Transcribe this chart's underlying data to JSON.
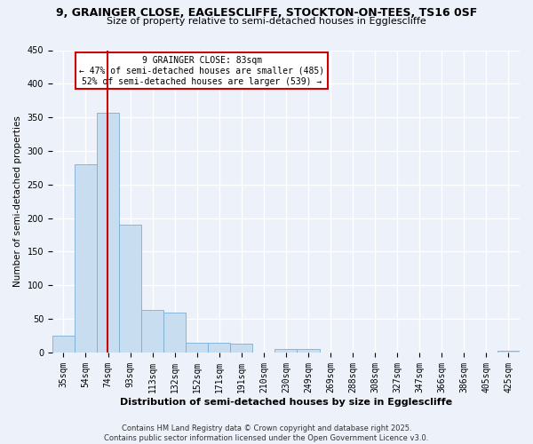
{
  "title1": "9, GRAINGER CLOSE, EAGLESCLIFFE, STOCKTON-ON-TEES, TS16 0SF",
  "title2": "Size of property relative to semi-detached houses in Egglescliffe",
  "xlabel": "Distribution of semi-detached houses by size in Egglescliffe",
  "ylabel": "Number of semi-detached properties",
  "bar_labels": [
    "35sqm",
    "54sqm",
    "74sqm",
    "93sqm",
    "113sqm",
    "132sqm",
    "152sqm",
    "171sqm",
    "191sqm",
    "210sqm",
    "230sqm",
    "249sqm",
    "269sqm",
    "288sqm",
    "308sqm",
    "327sqm",
    "347sqm",
    "366sqm",
    "386sqm",
    "405sqm",
    "425sqm"
  ],
  "bar_values": [
    25,
    280,
    357,
    190,
    63,
    60,
    15,
    15,
    13,
    0,
    5,
    5,
    0,
    0,
    0,
    0,
    0,
    0,
    0,
    0,
    2
  ],
  "bar_color": "#c8ddf0",
  "bar_edge_color": "#7bafd4",
  "property_line_x": 83,
  "bin_width": 19,
  "num_bins": 21,
  "ylim": [
    0,
    450
  ],
  "yticks": [
    0,
    50,
    100,
    150,
    200,
    250,
    300,
    350,
    400,
    450
  ],
  "annotation_line1": "9 GRAINGER CLOSE: 83sqm",
  "annotation_line2": "← 47% of semi-detached houses are smaller (485)",
  "annotation_line3": "52% of semi-detached houses are larger (539) →",
  "footer1": "Contains HM Land Registry data © Crown copyright and database right 2025.",
  "footer2": "Contains public sector information licensed under the Open Government Licence v3.0.",
  "background_color": "#edf1fa",
  "grid_color": "#ffffff",
  "annotation_box_facecolor": "#ffffff",
  "annotation_box_edge": "#cc0000",
  "red_line_color": "#cc0000",
  "title1_fontsize": 9,
  "title2_fontsize": 8,
  "xlabel_fontsize": 8,
  "ylabel_fontsize": 7.5,
  "tick_fontsize": 7,
  "annotation_fontsize": 7,
  "footer_fontsize": 6
}
